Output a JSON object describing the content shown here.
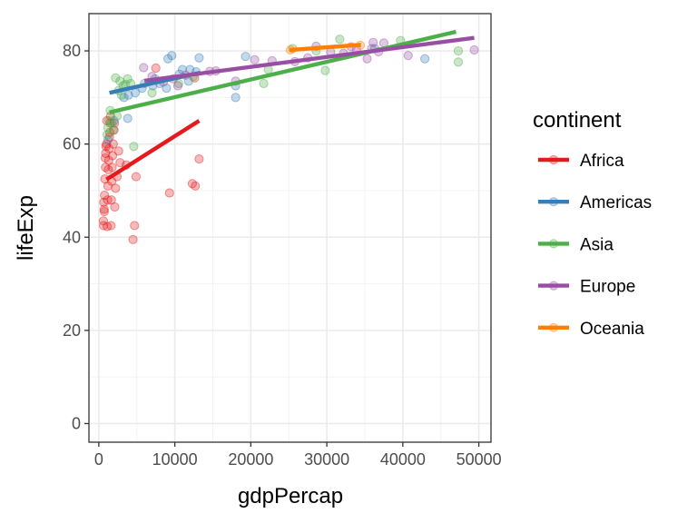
{
  "chart_data": {
    "type": "scatter",
    "title": "",
    "xlabel": "gdpPercap",
    "ylabel": "lifeExp",
    "xlim": [
      -1300,
      51600
    ],
    "ylim": [
      -4,
      88
    ],
    "x_ticks": [
      0,
      10000,
      20000,
      30000,
      40000,
      50000
    ],
    "x_tick_labels": [
      "0",
      "10000",
      "20000",
      "30000",
      "40000",
      "50000"
    ],
    "y_ticks": [
      0,
      20,
      40,
      60,
      80
    ],
    "y_tick_labels": [
      "0",
      "20",
      "40",
      "60",
      "80"
    ],
    "grid": true,
    "legend": {
      "title": "continent",
      "position": "right"
    },
    "series": [
      {
        "name": "Africa",
        "color": "#E41A1C",
        "trend": [
          [
            1000,
            52.4
          ],
          [
            13200,
            65.0
          ]
        ],
        "points": [
          [
            600,
            43.5
          ],
          [
            620,
            42.5
          ],
          [
            650,
            47.5
          ],
          [
            700,
            46.0
          ],
          [
            720,
            45.5
          ],
          [
            750,
            49.0
          ],
          [
            800,
            52.5
          ],
          [
            850,
            57.0
          ],
          [
            880,
            55.0
          ],
          [
            900,
            58.0
          ],
          [
            950,
            59.5
          ],
          [
            1000,
            60.0
          ],
          [
            1050,
            65.0
          ],
          [
            1100,
            42.3
          ],
          [
            1150,
            48.0
          ],
          [
            1200,
            51.0
          ],
          [
            1250,
            54.5
          ],
          [
            1300,
            56.5
          ],
          [
            1350,
            59.0
          ],
          [
            1400,
            61.5
          ],
          [
            1450,
            62.5
          ],
          [
            1500,
            64.5
          ],
          [
            1550,
            66.0
          ],
          [
            1600,
            42.5
          ],
          [
            1650,
            48.0
          ],
          [
            1700,
            52.0
          ],
          [
            1750,
            55.0
          ],
          [
            1800,
            57.5
          ],
          [
            1900,
            60.0
          ],
          [
            2000,
            63.0
          ],
          [
            2050,
            64.5
          ],
          [
            2100,
            46.5
          ],
          [
            2200,
            50.5
          ],
          [
            2400,
            53.0
          ],
          [
            2600,
            58.5
          ],
          [
            3600,
            55.5
          ],
          [
            4500,
            39.5
          ],
          [
            4700,
            42.5
          ],
          [
            4900,
            53.0
          ],
          [
            9300,
            49.5
          ],
          [
            12300,
            51.5
          ],
          [
            12700,
            51.0
          ],
          [
            13200,
            56.8
          ],
          [
            7500,
            76.3
          ],
          [
            12600,
            74.2
          ],
          [
            2800,
            56.0
          ]
        ]
      },
      {
        "name": "Americas",
        "color": "#377EB8",
        "trend": [
          [
            1400,
            71.0
          ],
          [
            13300,
            75.3
          ]
        ],
        "points": [
          [
            1200,
            60.9
          ],
          [
            2000,
            65.0
          ],
          [
            3800,
            65.5
          ],
          [
            3300,
            70.0
          ],
          [
            3900,
            70.5
          ],
          [
            4800,
            71.0
          ],
          [
            5700,
            72.0
          ],
          [
            6000,
            73.0
          ],
          [
            7100,
            72.5
          ],
          [
            7400,
            74.0
          ],
          [
            8000,
            73.0
          ],
          [
            8900,
            72.0
          ],
          [
            9100,
            78.3
          ],
          [
            9600,
            79.0
          ],
          [
            10600,
            75.0
          ],
          [
            11000,
            76.0
          ],
          [
            11800,
            73.5
          ],
          [
            12000,
            76.0
          ],
          [
            12800,
            75.5
          ],
          [
            13200,
            78.5
          ],
          [
            18000,
            70.0
          ],
          [
            18000,
            72.5
          ],
          [
            19300,
            78.8
          ],
          [
            36300,
            80.5
          ],
          [
            42900,
            78.3
          ]
        ]
      },
      {
        "name": "Asia",
        "color": "#4DAF4A",
        "trend": [
          [
            1400,
            66.8
          ],
          [
            47000,
            84.1
          ]
        ],
        "points": [
          [
            1100,
            62.0
          ],
          [
            1200,
            63.5
          ],
          [
            1350,
            65.0
          ],
          [
            1500,
            67.2
          ],
          [
            1700,
            64.5
          ],
          [
            1900,
            63.0
          ],
          [
            2200,
            74.2
          ],
          [
            2400,
            66.0
          ],
          [
            2600,
            71.5
          ],
          [
            2800,
            73.5
          ],
          [
            3000,
            70.5
          ],
          [
            3200,
            72.5
          ],
          [
            3500,
            72.8
          ],
          [
            3800,
            74.0
          ],
          [
            4200,
            73.0
          ],
          [
            4600,
            59.5
          ],
          [
            7000,
            71.0
          ],
          [
            10500,
            73.0
          ],
          [
            12400,
            74.5
          ],
          [
            21700,
            73.0
          ],
          [
            22300,
            76.0
          ],
          [
            25500,
            80.5
          ],
          [
            28600,
            80.0
          ],
          [
            29800,
            75.8
          ],
          [
            31700,
            82.5
          ],
          [
            39700,
            82.2
          ],
          [
            47300,
            80.0
          ],
          [
            47300,
            77.6
          ]
        ]
      },
      {
        "name": "Europe",
        "color": "#984EA3",
        "trend": [
          [
            6000,
            73.6
          ],
          [
            49400,
            82.8
          ]
        ],
        "points": [
          [
            5900,
            76.4
          ],
          [
            7000,
            74.5
          ],
          [
            8500,
            73.3
          ],
          [
            9800,
            74.0
          ],
          [
            10400,
            72.5
          ],
          [
            11400,
            74.8
          ],
          [
            14600,
            75.6
          ],
          [
            15400,
            75.7
          ],
          [
            18000,
            73.5
          ],
          [
            20500,
            78.1
          ],
          [
            22800,
            77.9
          ],
          [
            25800,
            77.7
          ],
          [
            27500,
            78.5
          ],
          [
            28600,
            81.0
          ],
          [
            30500,
            79.8
          ],
          [
            32200,
            79.5
          ],
          [
            33200,
            80.9
          ],
          [
            33900,
            80.2
          ],
          [
            35300,
            78.3
          ],
          [
            35900,
            80.5
          ],
          [
            36100,
            81.8
          ],
          [
            36800,
            79.8
          ],
          [
            37500,
            81.7
          ],
          [
            40700,
            79.0
          ],
          [
            49400,
            80.2
          ]
        ]
      },
      {
        "name": "Oceania",
        "color": "#FF7F00",
        "trend": [
          [
            25100,
            80.2
          ],
          [
            34500,
            81.3
          ]
        ],
        "points": [
          [
            25200,
            80.2
          ],
          [
            34400,
            81.2
          ]
        ]
      }
    ]
  }
}
